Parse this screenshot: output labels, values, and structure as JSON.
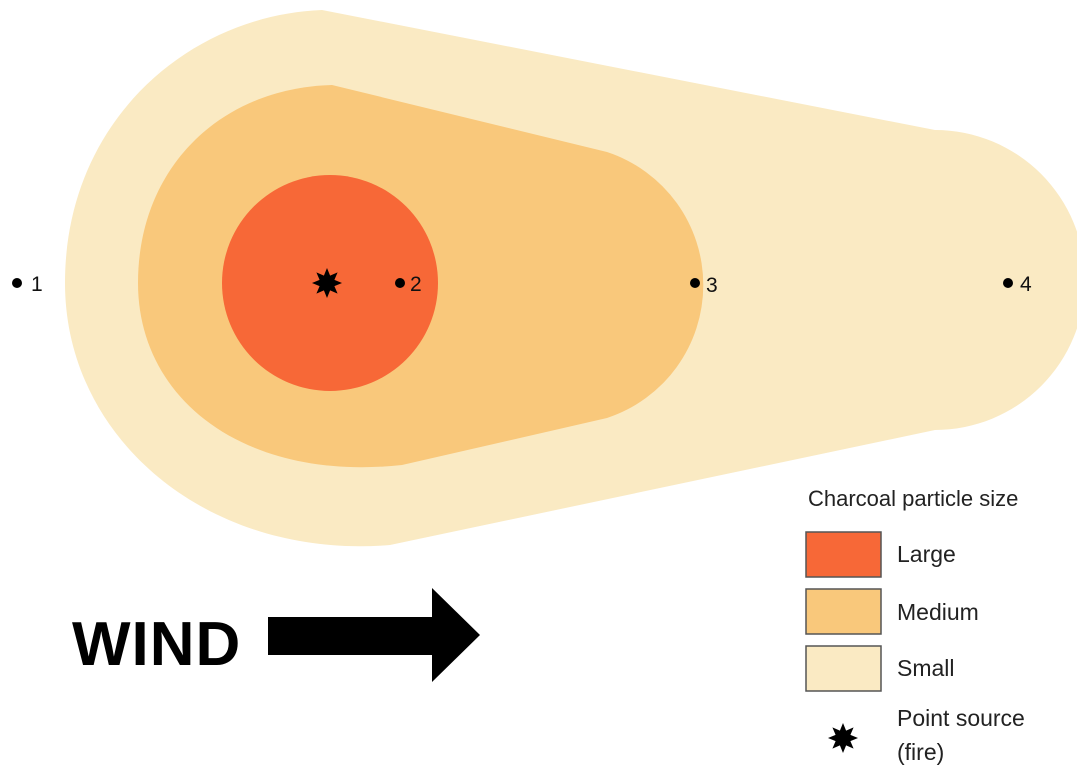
{
  "colors": {
    "large": "#F76837",
    "medium": "#F9C87B",
    "small": "#FAEAC3",
    "legend_border": "#555555",
    "ink": "#000000"
  },
  "points": [
    {
      "label": "1"
    },
    {
      "label": "2"
    },
    {
      "label": "3"
    },
    {
      "label": "4"
    }
  ],
  "wind": {
    "label": "WIND",
    "icon": "right-arrow-icon"
  },
  "legend": {
    "title": "Charcoal particle size",
    "items": [
      {
        "label": "Large",
        "color_key": "large"
      },
      {
        "label": "Medium",
        "color_key": "medium"
      },
      {
        "label": "Small",
        "color_key": "small"
      }
    ],
    "source_line1": "Point source",
    "source_line2": "(fire)",
    "source_icon": "star-icon"
  }
}
